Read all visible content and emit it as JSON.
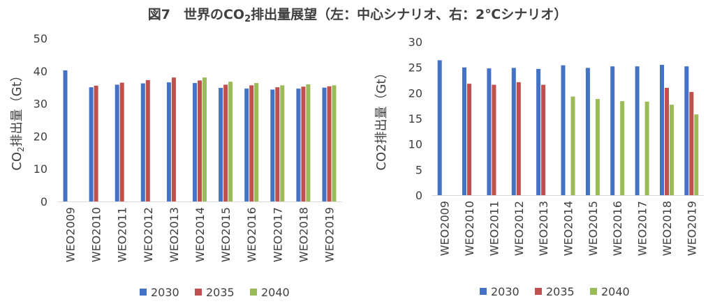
{
  "title": {
    "prefix": "図7　世界のCO",
    "sub": "2",
    "suffix": "排出量展望（左：中心シナリオ、右：2℃シナリオ）"
  },
  "colors": {
    "2030": "#4472C4",
    "2035": "#C0504D",
    "2040": "#9BBB59"
  },
  "chart_data": [
    {
      "type": "bar",
      "ylabel": {
        "prefix": "CO",
        "sub": "2",
        "suffix": "排出量（Gt）"
      },
      "ylim": [
        0,
        50
      ],
      "yticks": [
        0,
        10,
        20,
        30,
        40,
        50
      ],
      "grid": false,
      "legend": "bottom",
      "categories": [
        "WEO2009",
        "WEO2010",
        "WEO2011",
        "WEO2012",
        "WEO2013",
        "WEO2014",
        "WEO2015",
        "WEO2016",
        "WEO2017",
        "WEO2018",
        "WEO2019"
      ],
      "series": [
        {
          "name": "2030",
          "values": [
            40.2,
            35.0,
            35.8,
            36.2,
            36.5,
            36.3,
            34.8,
            34.6,
            34.3,
            34.6,
            34.9
          ]
        },
        {
          "name": "2035",
          "values": [
            null,
            35.5,
            36.4,
            37.2,
            38.0,
            37.1,
            35.8,
            35.6,
            35.0,
            35.2,
            35.3
          ]
        },
        {
          "name": "2040",
          "values": [
            null,
            null,
            null,
            null,
            null,
            38.0,
            36.7,
            36.3,
            35.6,
            35.9,
            35.6
          ]
        }
      ]
    },
    {
      "type": "bar",
      "ylabel": {
        "prefix": "CO2排出量（Gt）",
        "sub": "",
        "suffix": ""
      },
      "ylim": [
        0,
        30
      ],
      "yticks": [
        0,
        5,
        10,
        15,
        20,
        25,
        30
      ],
      "grid": false,
      "legend": "bottom",
      "categories": [
        "WEO2009",
        "WEO2010",
        "WEO2011",
        "WEO2012",
        "WEO2013",
        "WEO2014",
        "WEO2015",
        "WEO2016",
        "WEO2017",
        "WEO2018",
        "WEO2019"
      ],
      "series": [
        {
          "name": "2030",
          "values": [
            26.4,
            25.0,
            24.8,
            24.9,
            24.7,
            25.4,
            24.9,
            25.2,
            25.2,
            25.5,
            25.2
          ]
        },
        {
          "name": "2035",
          "values": [
            null,
            21.8,
            21.6,
            22.1,
            21.6,
            null,
            null,
            null,
            null,
            21.0,
            20.2
          ]
        },
        {
          "name": "2040",
          "values": [
            null,
            null,
            null,
            null,
            null,
            19.3,
            18.8,
            18.4,
            18.3,
            17.7,
            15.8
          ]
        }
      ]
    }
  ]
}
